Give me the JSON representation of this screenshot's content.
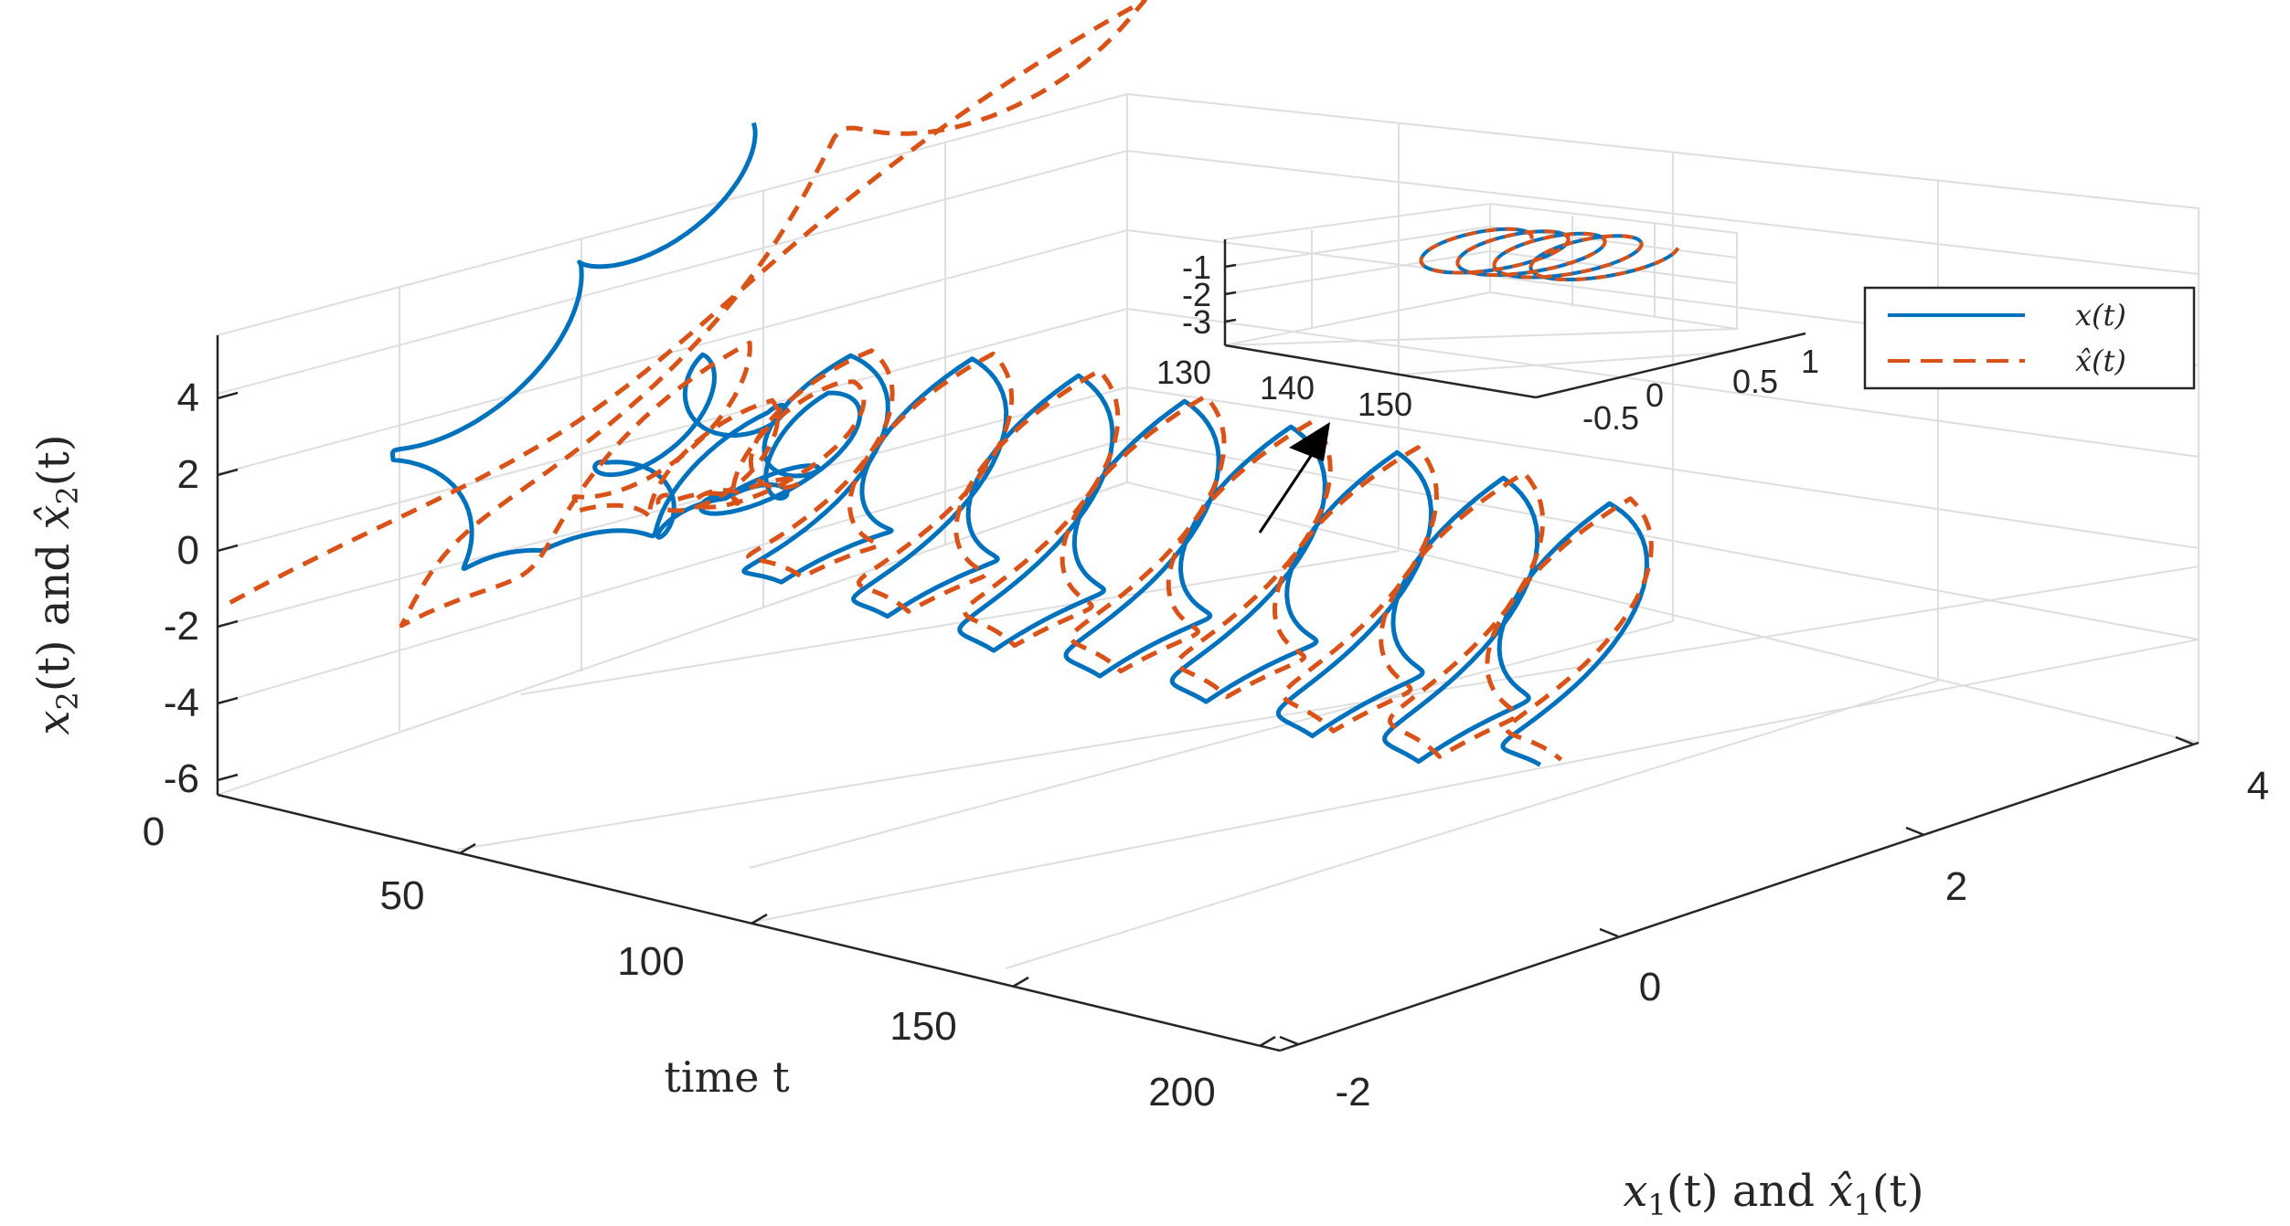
{
  "chart_data": [
    {
      "type": "line",
      "projection": "3d",
      "title": "",
      "xlabel": "x_1(t) and x̂_1(t)",
      "ylabel": "time t",
      "zlabel": "x_2(t) and x̂_2(t)",
      "xlim": [
        -2,
        4
      ],
      "ylim": [
        0,
        200
      ],
      "zlim": [
        -6,
        5
      ],
      "xticks": [
        "-2",
        "0",
        "2",
        "4"
      ],
      "yticks": [
        "0",
        "50",
        "100",
        "150",
        "200"
      ],
      "zticks": [
        "-6",
        "-4",
        "-2",
        "0",
        "2",
        "4"
      ],
      "grid": true,
      "legend_position": "top-right",
      "series": [
        {
          "name": "x(t)",
          "color": "#0072bd",
          "style": "solid",
          "description_points": {
            "t": [
              0,
              5,
              10,
              15,
              20,
              25,
              30,
              35,
              40,
              45,
              50,
              60,
              70,
              80,
              90,
              100,
              110,
              120,
              130,
              140,
              150,
              160,
              170,
              180,
              190,
              200
            ],
            "x1": [
              1.5,
              0.2,
              -1.2,
              -0.4,
              0.9,
              0.3,
              -0.5,
              0.1,
              0.6,
              -0.2,
              0.4,
              -0.4,
              0.5,
              -0.4,
              0.5,
              -0.4,
              0.5,
              -0.4,
              0.5,
              -0.4,
              0.5,
              -0.4,
              0.5,
              -0.4,
              0.5,
              -0.3
            ],
            "x2": [
              4.8,
              3.2,
              0.5,
              -2.4,
              -0.6,
              1.6,
              0.2,
              -1.2,
              0.8,
              -0.4,
              2.2,
              -1.8,
              2.6,
              -2.0,
              2.8,
              -2.2,
              2.8,
              -2.2,
              2.8,
              -2.2,
              2.8,
              -2.4,
              2.8,
              -2.4,
              2.8,
              -2.0
            ]
          }
        },
        {
          "name": "x̂(t)",
          "color": "#d95319",
          "style": "dashed",
          "description_points": {
            "t": [
              0,
              5,
              10,
              15,
              20,
              25,
              30,
              35,
              40,
              45,
              50,
              60,
              70,
              80,
              90,
              100,
              110,
              120,
              130,
              140,
              150,
              160,
              170,
              180,
              190,
              200
            ],
            "x1": [
              -2,
              3.8,
              1.6,
              -1.4,
              0.7,
              -0.6,
              0.5,
              -0.3,
              0.6,
              -0.3,
              0.4,
              -0.4,
              0.5,
              -0.4,
              0.5,
              -0.4,
              0.5,
              -0.4,
              0.5,
              -0.4,
              0.5,
              -0.4,
              0.5,
              -0.4,
              0.5,
              -0.3
            ],
            "x2": [
              -2.2,
              5.0,
              4.6,
              -3.0,
              1.2,
              -1.0,
              0.4,
              -0.8,
              1.0,
              -0.4,
              2.2,
              -1.8,
              2.6,
              -2.0,
              2.8,
              -2.2,
              2.8,
              -2.2,
              2.8,
              -2.2,
              2.8,
              -2.4,
              2.8,
              -2.4,
              2.8,
              -2.0
            ]
          }
        }
      ]
    },
    {
      "type": "line",
      "projection": "3d",
      "role": "inset",
      "title": "",
      "xlim": [
        -0.7,
        1.1
      ],
      "ylim": [
        130,
        158
      ],
      "zlim": [
        -3.2,
        -0.7
      ],
      "xticks": [
        "-0.5",
        "0",
        "0.5",
        "1"
      ],
      "yticks": [
        "130",
        "140",
        "150"
      ],
      "zticks": [
        "-1",
        "-2",
        "-3"
      ],
      "grid": true,
      "loops": 4
    }
  ],
  "legend": {
    "entries": [
      "x(t)",
      "x̂(t)"
    ]
  },
  "labels": {
    "zlabel_parts": [
      "x",
      "2",
      "(t) and ",
      "x̂",
      "2",
      "(t)"
    ],
    "xlabel_parts": [
      "x",
      "1",
      "(t) and ",
      "x̂",
      "1",
      "(t)"
    ],
    "ylabel": "time t"
  },
  "colors": {
    "series1": "#0072bd",
    "series2": "#d95319",
    "grid": "#dedede",
    "axis": "#262626"
  }
}
